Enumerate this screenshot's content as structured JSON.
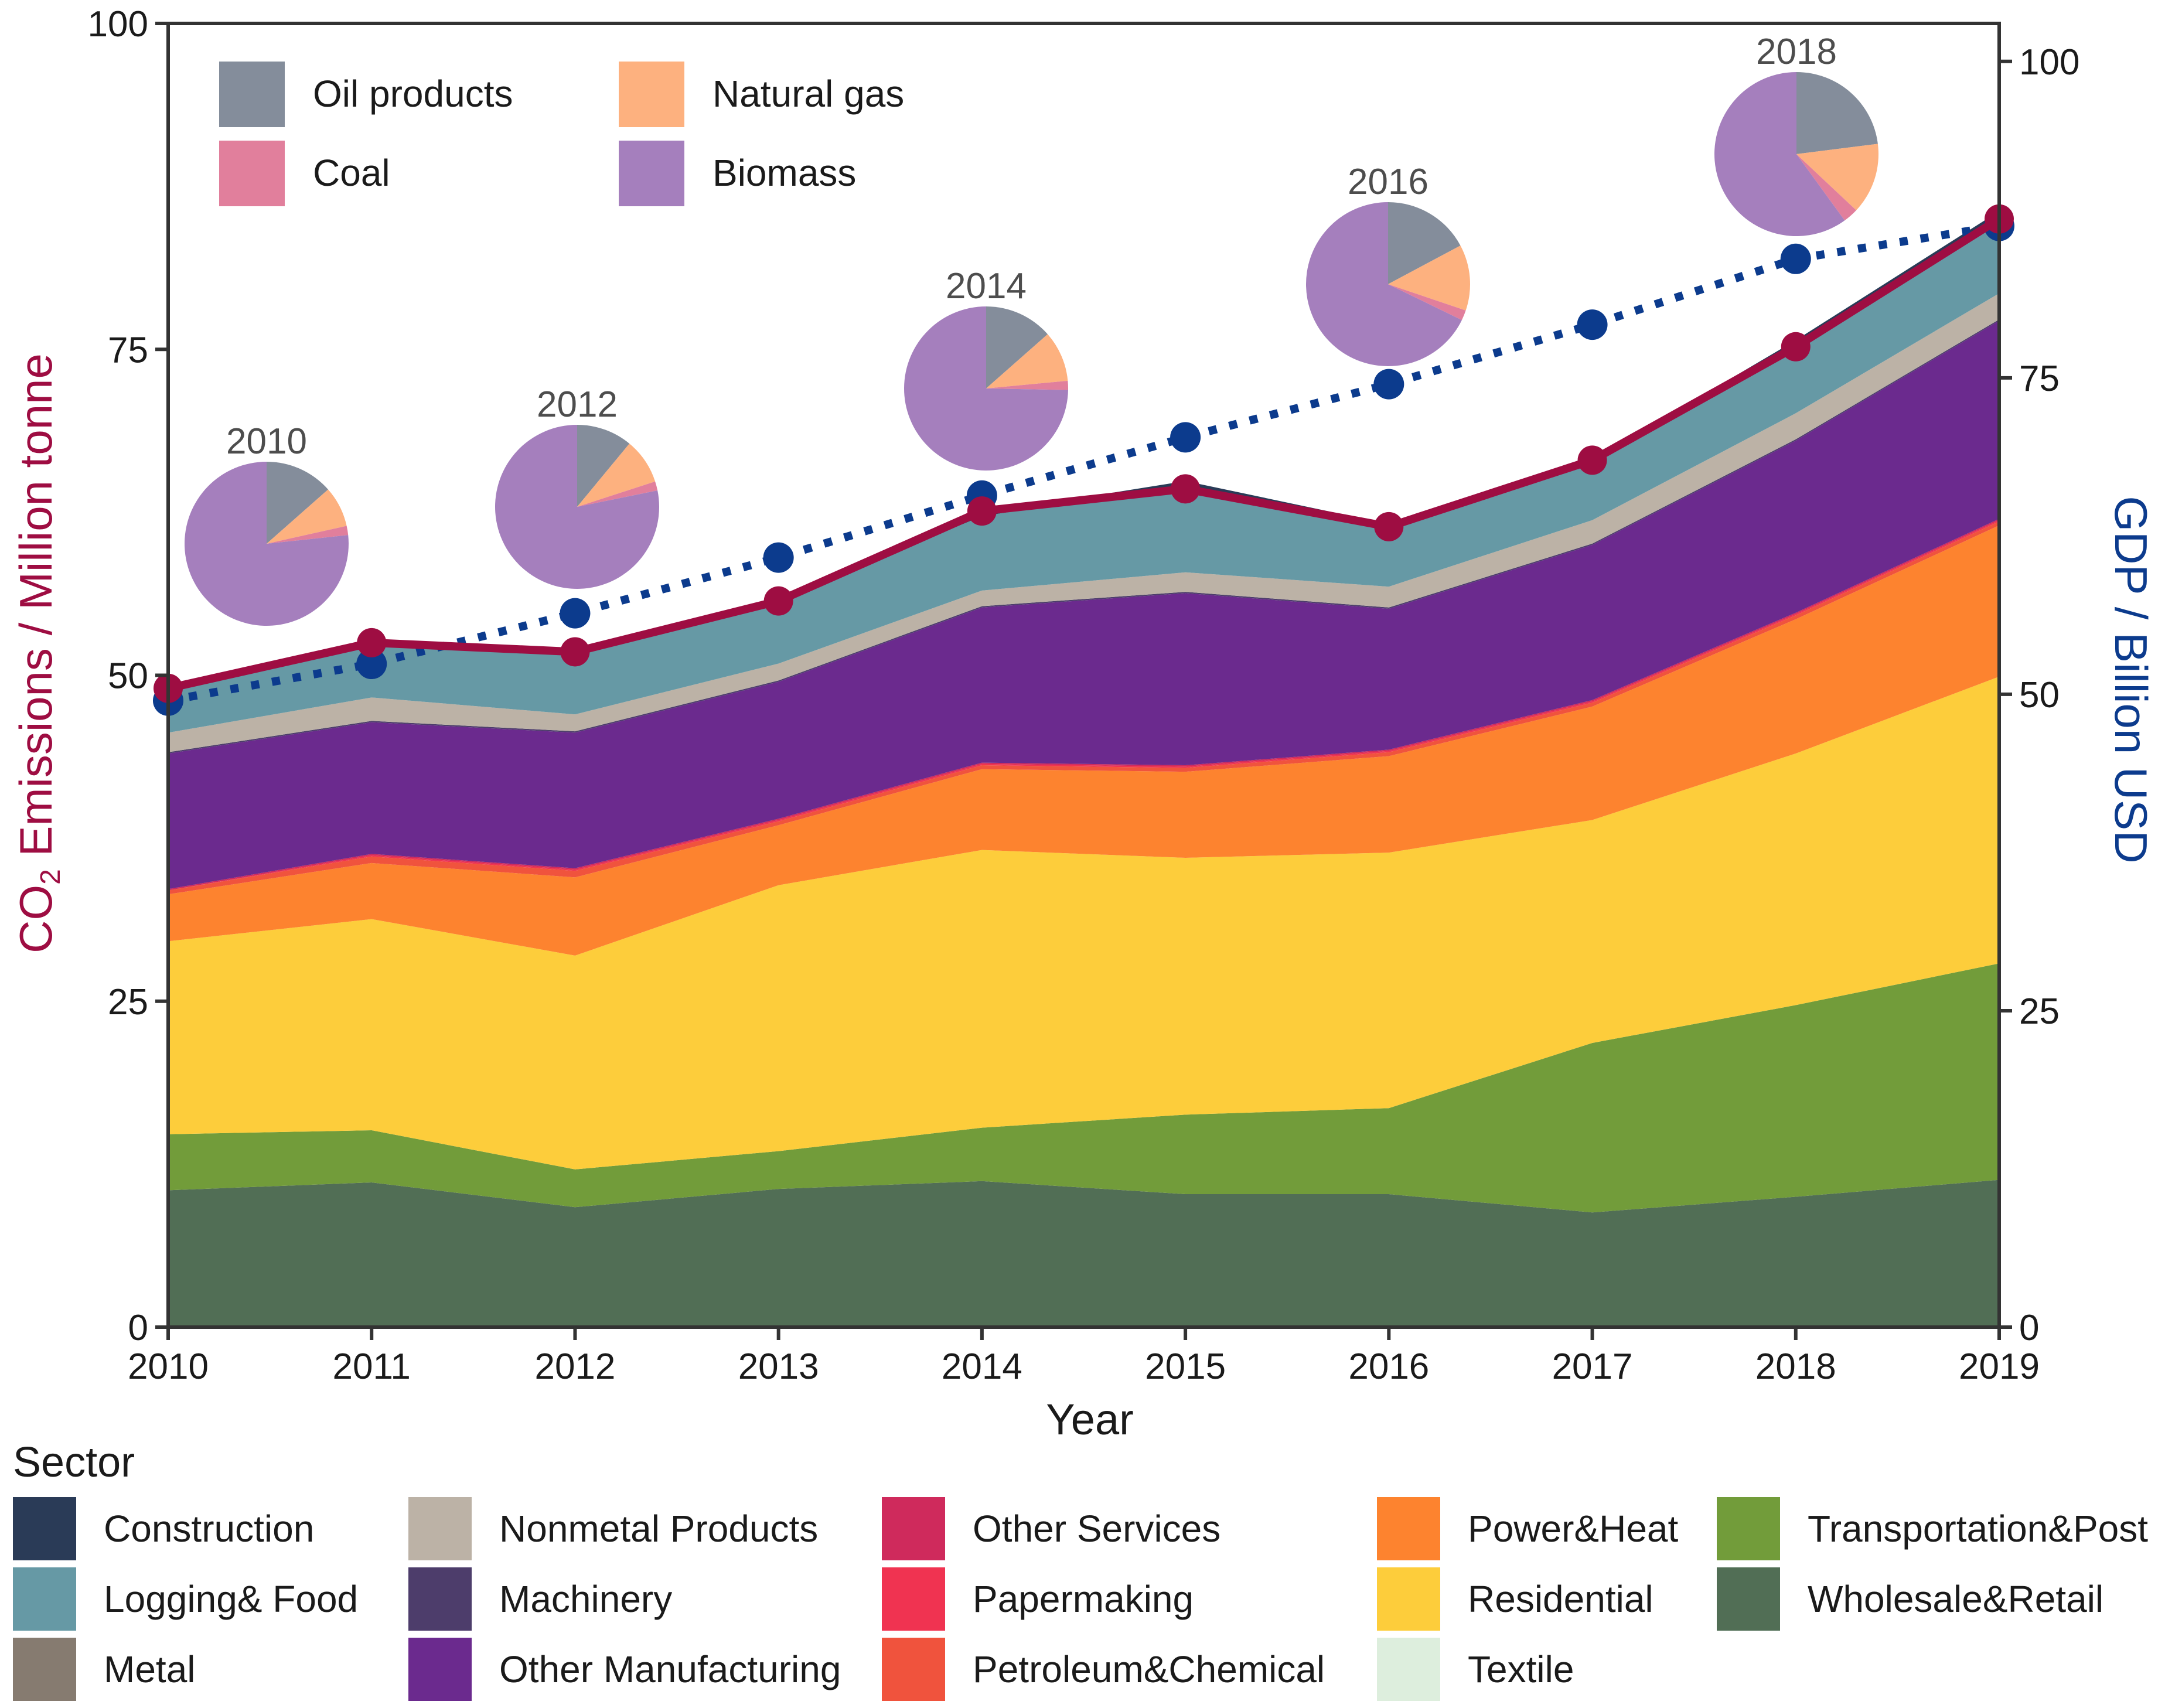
{
  "chart_data": {
    "type": "area",
    "x": [
      2010,
      2011,
      2012,
      2013,
      2014,
      2015,
      2016,
      2017,
      2018,
      2019
    ],
    "xlabel": "Year",
    "ylabel_left": {
      "main": "CO",
      "sub": "2",
      "rest": " Emissions / Million tonne"
    },
    "ylabel_right": "GDP / Billion USD",
    "ylim_left": [
      0,
      100
    ],
    "ylim_right": [
      0,
      103
    ],
    "yticks_left": [
      0,
      25,
      50,
      75,
      100
    ],
    "yticks_right": [
      0,
      25,
      50,
      75,
      100
    ],
    "legend_title": "Sector",
    "legend_placement": "bottom",
    "series": [
      {
        "name": "Wholesale&Retail",
        "color": "#516e55",
        "values": [
          10.5,
          11.1,
          9.2,
          10.6,
          11.2,
          10.2,
          10.2,
          8.8,
          10.0,
          11.3
        ]
      },
      {
        "name": "Transportation&Post",
        "color": "#729c3a",
        "values": [
          4.3,
          4.0,
          2.9,
          2.9,
          4.1,
          6.1,
          6.6,
          13.0,
          14.7,
          16.6
        ]
      },
      {
        "name": "Residential",
        "color": "#fdcd3b",
        "values": [
          14.8,
          16.2,
          16.4,
          20.4,
          21.3,
          19.7,
          19.6,
          17.1,
          19.3,
          22.0
        ]
      },
      {
        "name": "Power&Heat",
        "color": "#fd832f",
        "values": [
          3.6,
          4.3,
          6.0,
          4.6,
          6.2,
          6.6,
          7.4,
          8.7,
          10.3,
          11.6
        ]
      },
      {
        "name": "Petroleum&Chemical",
        "color": "#f0533d",
        "values": [
          0.3,
          0.5,
          0.5,
          0.3,
          0.3,
          0.3,
          0.3,
          0.3,
          0.3,
          0.3
        ]
      },
      {
        "name": "Papermaking",
        "color": "#f03351",
        "values": [
          0.0,
          0.1,
          0.1,
          0.1,
          0.1,
          0.1,
          0.1,
          0.1,
          0.1,
          0.1
        ]
      },
      {
        "name": "Other Services",
        "color": "#cf2a5c",
        "values": [
          0.1,
          0.1,
          0.1,
          0.1,
          0.1,
          0.1,
          0.1,
          0.1,
          0.1,
          0.1
        ]
      },
      {
        "name": "Other Manufacturing",
        "color": "#6b2a8e",
        "values": [
          10.4,
          10.1,
          10.4,
          10.5,
          11.9,
          13.2,
          10.8,
          11.9,
          13.2,
          15.2
        ]
      },
      {
        "name": "Machinery",
        "color": "#4d3d6b",
        "values": [
          0.1,
          0.1,
          0.1,
          0.1,
          0.1,
          0.1,
          0.1,
          0.1,
          0.1,
          0.1
        ]
      },
      {
        "name": "Nonmetal Products",
        "color": "#bcb2a6",
        "values": [
          1.5,
          1.8,
          1.3,
          1.3,
          1.2,
          1.5,
          1.6,
          1.8,
          2.0,
          2.0
        ]
      },
      {
        "name": "Metal",
        "color": "#867b70",
        "values": [
          0.0,
          0.0,
          0.0,
          0.0,
          0.0,
          0.0,
          0.0,
          0.0,
          0.0,
          0.0
        ]
      },
      {
        "name": "Logging& Food",
        "color": "#6699a5",
        "values": [
          3.4,
          3.9,
          4.7,
          4.9,
          5.7,
          6.7,
          4.5,
          4.3,
          5.1,
          5.7
        ]
      },
      {
        "name": "Construction",
        "color": "#2a3b57",
        "values": [
          0.1,
          0.1,
          0.1,
          0.1,
          0.2,
          0.3,
          0.3,
          0.3,
          0.5,
          0.6
        ]
      },
      {
        "name": "Textile",
        "color": "#ddeedd",
        "values": [
          0,
          0,
          0,
          0,
          0,
          0,
          0,
          0,
          0,
          0
        ]
      }
    ],
    "total_emissions": {
      "color": "#9e0d42",
      "values": [
        49.0,
        52.5,
        51.8,
        55.7,
        62.6,
        64.3,
        61.4,
        66.5,
        75.2,
        85.0
      ]
    },
    "gdp": {
      "color": "#0c3b8d",
      "axis": "right",
      "style": "dotted",
      "values": [
        49.5,
        52.4,
        56.4,
        60.8,
        65.7,
        70.3,
        74.5,
        79.2,
        84.4,
        87.0
      ]
    },
    "energy_pies": {
      "legend": [
        {
          "name": "Oil products",
          "color": "#848d9b"
        },
        {
          "name": "Natural gas",
          "color": "#fdb17f"
        },
        {
          "name": "Coal",
          "color": "#e17f9c"
        },
        {
          "name": "Biomass",
          "color": "#a57fbd"
        }
      ],
      "pies": [
        {
          "year": "2010",
          "shares": [
            0.135,
            0.08,
            0.018,
            0.767
          ]
        },
        {
          "year": "2012",
          "shares": [
            0.11,
            0.09,
            0.018,
            0.782
          ]
        },
        {
          "year": "2014",
          "shares": [
            0.135,
            0.1,
            0.018,
            0.747
          ]
        },
        {
          "year": "2016",
          "shares": [
            0.172,
            0.13,
            0.02,
            0.678
          ]
        },
        {
          "year": "2018",
          "shares": [
            0.23,
            0.14,
            0.03,
            0.6
          ]
        }
      ]
    }
  }
}
